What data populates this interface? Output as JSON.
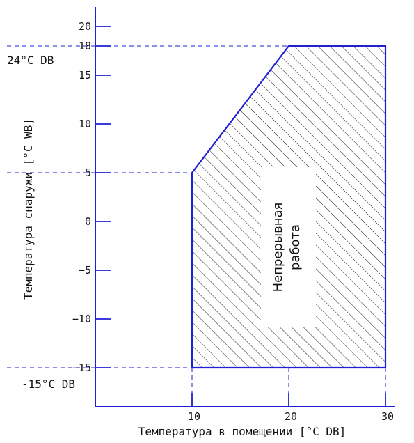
{
  "chart_data": {
    "type": "area",
    "xlabel": "Температура в помещении [°C DB]",
    "ylabel": "Температура снаружи [°C WB]",
    "xticks": [
      10,
      20,
      30
    ],
    "yticks": [
      20,
      18,
      15,
      10,
      5,
      0,
      -5,
      -10,
      -15
    ],
    "xlim": [
      0,
      31
    ],
    "ylim": [
      -19,
      22
    ],
    "region": {
      "label_line1": "Непрерывная",
      "label_line2": "работа",
      "polygon": [
        [
          10,
          -15
        ],
        [
          10,
          5
        ],
        [
          20,
          18
        ],
        [
          30,
          18
        ],
        [
          30,
          -15
        ]
      ],
      "hatched": true
    },
    "annotations": [
      {
        "text": "24°C DB",
        "y": 18
      },
      {
        "text": "-15°C DB",
        "y": -15
      }
    ],
    "guides": {
      "horizontal_y": [
        18,
        5,
        -15
      ],
      "vertical_x": [
        10,
        20,
        30
      ]
    },
    "colors": {
      "axis": "#1f1fd6",
      "region_border": "#1f1fd6",
      "hatch": "#1a1a1a",
      "guide": "#1f1fd6"
    }
  }
}
